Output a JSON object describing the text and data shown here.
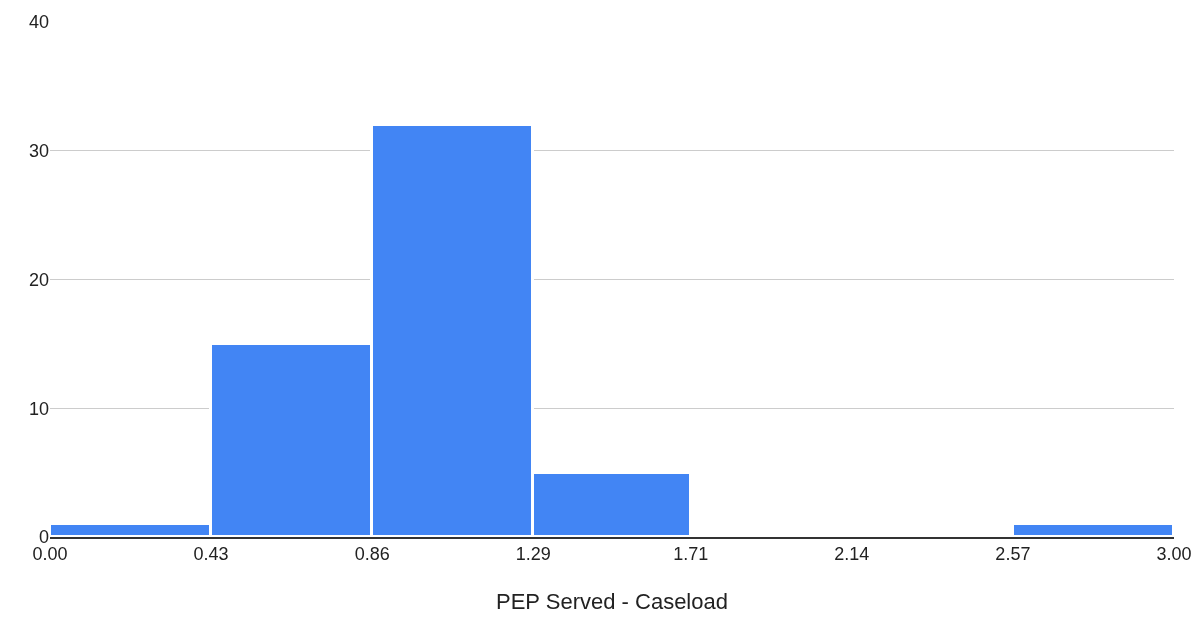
{
  "chart_data": {
    "type": "histogram",
    "xlabel": "PEP Served - Caseload",
    "bins": [
      0,
      0.43,
      0.86,
      1.29,
      1.71,
      2.57,
      3.0
    ],
    "values": [
      1,
      15,
      32,
      5,
      0,
      1
    ],
    "color": "#4285f4",
    "xlim": [
      0,
      3.0
    ],
    "xticks": [
      {
        "value": 0,
        "label": "0.00"
      },
      0.43,
      0.86,
      1.29,
      1.71,
      2.14,
      2.57,
      {
        "value": 3.0,
        "label": "3.00"
      }
    ],
    "ylim": [
      0,
      40
    ],
    "yticks": [
      0,
      10,
      20,
      30,
      40
    ],
    "grid": "y"
  }
}
